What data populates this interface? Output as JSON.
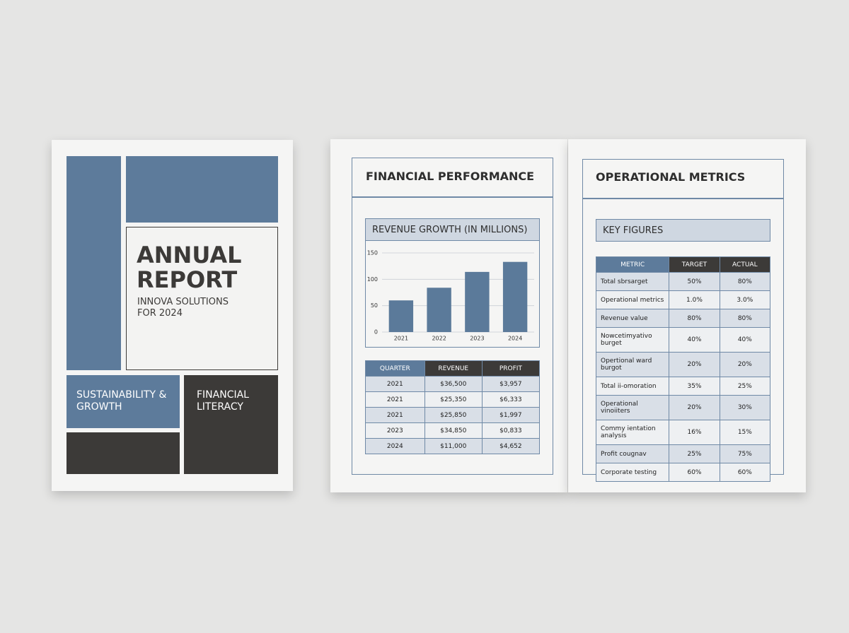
{
  "cover": {
    "title": "ANNUAL REPORT",
    "subtitle": "INNOVA SOLUTIONS FOR 2024",
    "block_1": "SUSTAINABILITY & GROWTH",
    "block_2": "FINANCIAL LITERACY"
  },
  "financial": {
    "title": "FINANCIAL PERFORMANCE",
    "table": {
      "header": [
        "QUARTER",
        "REVENUE",
        "PROFIT"
      ],
      "rows": [
        [
          "2021",
          "$36,500",
          "$3,957"
        ],
        [
          "2021",
          "$25,350",
          "$6,333"
        ],
        [
          "2021",
          "$25,850",
          "$1,997"
        ],
        [
          "2023",
          "$34,850",
          "$0,833"
        ],
        [
          "2024",
          "$11,000",
          "$4,652"
        ]
      ]
    }
  },
  "chart_data": {
    "type": "bar",
    "title": "REVENUE GROWTH (IN MILLIONS)",
    "categories": [
      "2021",
      "2022",
      "2023",
      "2024"
    ],
    "values": [
      60,
      84,
      114,
      133
    ],
    "color": "#5b7a9a",
    "ylim": [
      0,
      150
    ],
    "yticks": [
      0,
      50,
      100,
      150
    ],
    "grid": true
  },
  "operational": {
    "title": "OPERATIONAL METRICS",
    "subtitle": "KEY FIGURES",
    "table": {
      "header": [
        "METRIC",
        "TARGET",
        "ACTUAL"
      ],
      "rows": [
        [
          "Total sbrsarget",
          "50%",
          "80%"
        ],
        [
          "Operational metrics",
          "1.0%",
          "3.0%"
        ],
        [
          "Revenue value",
          "80%",
          "80%"
        ],
        [
          "Nowcetimyativo burget",
          "40%",
          "40%"
        ],
        [
          "Opertional ward burgot",
          "20%",
          "20%"
        ],
        [
          "Total ii-omoration",
          "35%",
          "25%"
        ],
        [
          "Operational vinoiiters",
          "20%",
          "30%"
        ],
        [
          "Commy ientation analysis",
          "16%",
          "15%"
        ],
        [
          "Profit cougnav",
          "25%",
          "75%"
        ],
        [
          "Corporate testing",
          "60%",
          "60%"
        ]
      ]
    }
  }
}
